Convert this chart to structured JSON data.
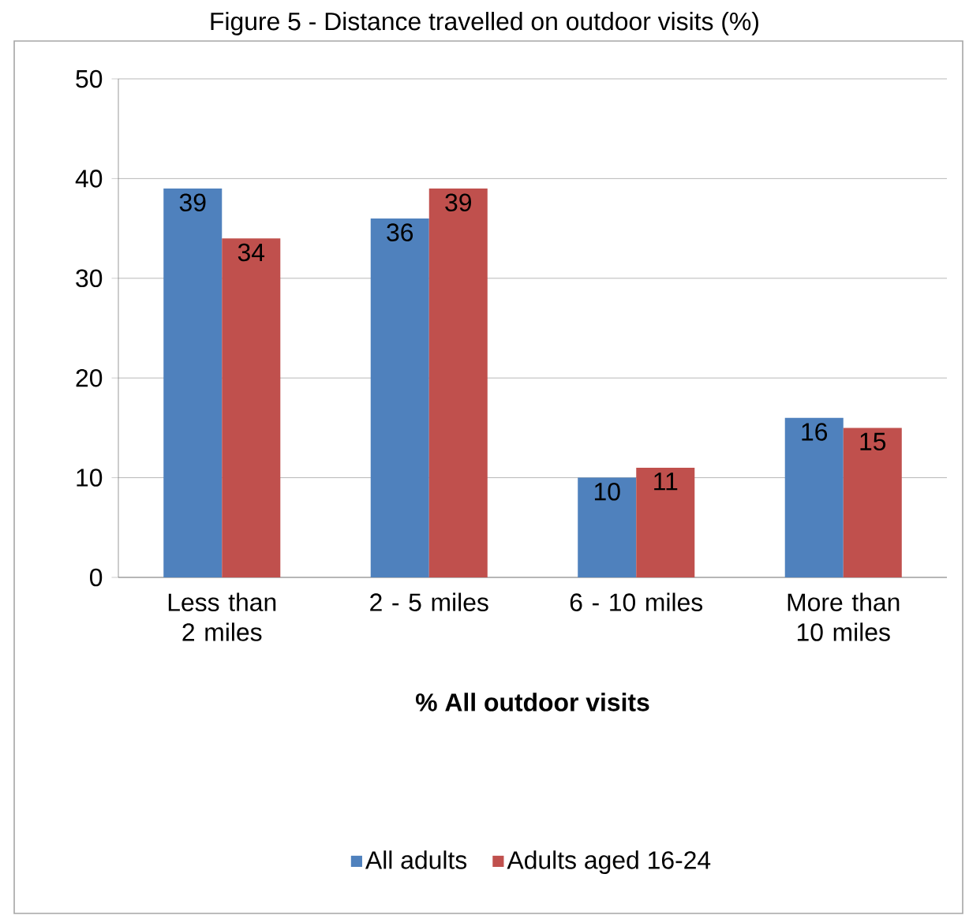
{
  "chart_data": {
    "type": "bar",
    "title": "Figure 5 - Distance travelled on outdoor visits (%)",
    "xlabel": "**% All outdoor visits**",
    "categories": [
      "Less than 2 miles",
      "2 - 5 miles",
      "6 - 10 miles",
      "More than 10 miles"
    ],
    "series": [
      {
        "name": "All adults",
        "color": "#4f81bd",
        "values": [
          39,
          36,
          10,
          16
        ]
      },
      {
        "name": "Adults aged 16-24",
        "color": "#c0504d",
        "values": [
          34,
          39,
          11,
          15
        ]
      }
    ],
    "ylim": [
      0,
      50
    ],
    "yticks": [
      0,
      10,
      20,
      30,
      40,
      50
    ],
    "grid": "y",
    "legend": "bottom",
    "data_labels": true
  }
}
